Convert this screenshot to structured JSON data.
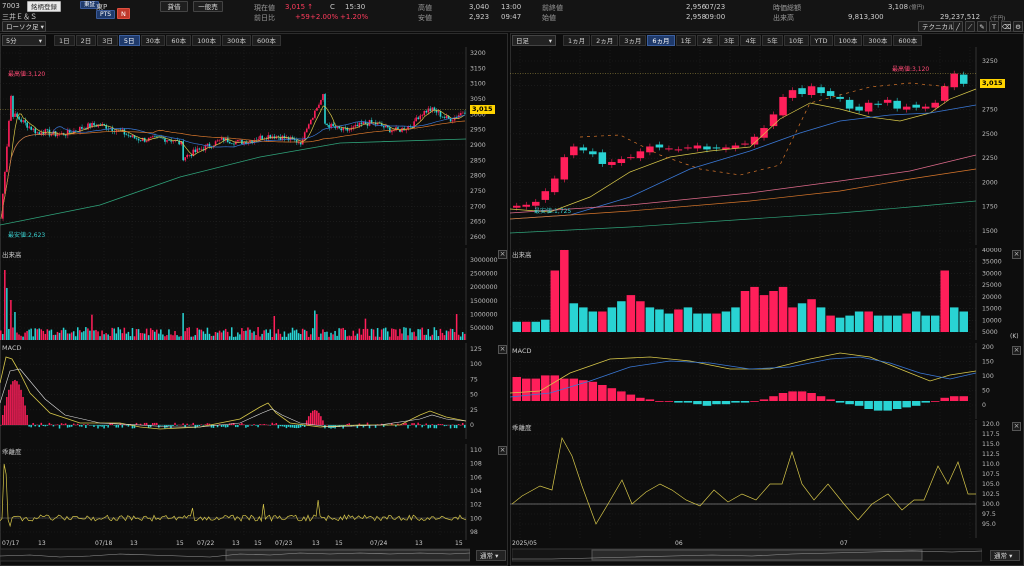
{
  "header": {
    "code": "7003",
    "register_btn": "銘柄登録",
    "exchange_tag": "東証",
    "pts_tag": "PTS",
    "n_tag": "N",
    "ticker_suffix": "東P",
    "company": "三井Ｅ＆Ｓ",
    "credit_btn": "貸借",
    "general_btn": "一般売",
    "current_label": "現在値",
    "current_value": "3,015",
    "current_flag": "C",
    "current_time": "15:30",
    "change_label": "前日比",
    "change_value": "+59",
    "change_pct": "+2.00%",
    "change_pct2": "+1.20%",
    "high_label": "高値",
    "high_value": "3,040",
    "high_time": "13:00",
    "low_label": "安値",
    "low_value": "2,923",
    "low_time": "09:47",
    "prev_label": "前終値",
    "prev_value": "2,956",
    "prev_date": "07/23",
    "open_label": "始値",
    "open_value": "2,958",
    "open_time": "09:00",
    "mcap_label": "時価総額",
    "mcap_value": "3,108",
    "mcap_unit": "(億円)",
    "volume_label": "出来高",
    "volume_value": "9,813,300",
    "turnover_value": "29,237,512",
    "turnover_unit": "(千円)",
    "technical_btn": "テクニカル",
    "candle_select": "ローソク足"
  },
  "left": {
    "period_select": "5分",
    "tabs": [
      "1日",
      "2日",
      "3日",
      "5日",
      "30本",
      "60本",
      "100本",
      "300本",
      "600本"
    ],
    "active_tab": "5日",
    "high_note": "最高値:3,120",
    "low_note": "最安値:2,623",
    "price_badge": "3,015",
    "y_ticks": [
      "3200",
      "3150",
      "3100",
      "3050",
      "3000",
      "2950",
      "2900",
      "2850",
      "2800",
      "2750",
      "2700",
      "2650",
      "2600"
    ],
    "volume_title": "出来高",
    "volume_ticks": [
      "3000000",
      "2500000",
      "2000000",
      "1500000",
      "1000000",
      "500000"
    ],
    "macd_title": "MACD",
    "macd_ticks": [
      "125",
      "100",
      "75",
      "50",
      "25",
      "0"
    ],
    "psy_title": "乖離度",
    "psy_ticks": [
      "110",
      "108",
      "106",
      "104",
      "102",
      "100",
      "98"
    ],
    "x_ticks": [
      "07/17",
      "13",
      "07/18",
      "13",
      "15",
      "07/22",
      "13",
      "15",
      "07/23",
      "13",
      "15",
      "07/24",
      "13",
      "15"
    ],
    "normal_select": "通常"
  },
  "right": {
    "period_select": "日足",
    "tabs": [
      "1ヵ月",
      "2ヵ月",
      "3ヵ月",
      "6ヵ月",
      "1年",
      "2年",
      "3年",
      "4年",
      "5年",
      "10年",
      "YTD",
      "100本",
      "300本",
      "600本"
    ],
    "active_tab": "6ヵ月",
    "high_note": "最高値:3,120",
    "low_note": "最安値:1,725",
    "price_badge": "3,015",
    "y_ticks": [
      "3250",
      "3000",
      "2750",
      "2500",
      "2250",
      "2000",
      "1750",
      "1500"
    ],
    "volume_title": "出来高",
    "volume_ticks": [
      "40000",
      "35000",
      "30000",
      "25000",
      "20000",
      "15000",
      "10000",
      "5000"
    ],
    "volume_unit": "(K)",
    "macd_title": "MACD",
    "macd_ticks": [
      "200",
      "150",
      "100",
      "50",
      "0"
    ],
    "psy_title": "乖離度",
    "psy_ticks": [
      "120.0",
      "117.5",
      "115.0",
      "112.5",
      "110.0",
      "107.5",
      "105.0",
      "102.5",
      "100.0",
      "97.5",
      "95.0"
    ],
    "x_ticks": [
      "2025/05",
      "06",
      "07"
    ],
    "normal_select": "通常"
  },
  "colors": {
    "up": "#ff1f5a",
    "down": "#29d3d3",
    "ma_blue": "#3a78d6",
    "ma_yellow": "#d8c84a",
    "ma_orange": "#d9772b",
    "ma_green": "#2fa37a"
  }
}
